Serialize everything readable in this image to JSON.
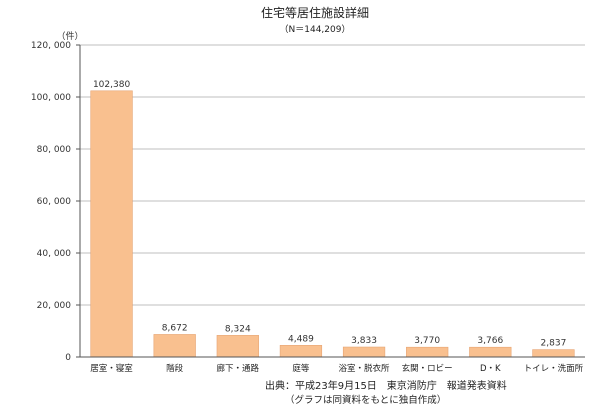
{
  "chart_data": {
    "type": "bar",
    "title": "住宅等居住施設詳細",
    "subtitle": "（N＝144,209）",
    "y_unit": "（件）",
    "categories": [
      "居室・寝室",
      "階段",
      "廊下・通路",
      "庭等",
      "浴室・脱衣所",
      "玄関・ロビー",
      "D・K",
      "トイレ・洗面所"
    ],
    "values": [
      102380,
      8672,
      8324,
      4489,
      3833,
      3770,
      3766,
      2837
    ],
    "value_labels": [
      "102,380",
      "8,672",
      "8,324",
      "4,489",
      "3,833",
      "3,770",
      "3,766",
      "2,837"
    ],
    "ylim": [
      0,
      120000
    ],
    "yticks": [
      0,
      20000,
      40000,
      60000,
      80000,
      100000,
      120000
    ],
    "ytick_labels": [
      "0",
      "20, 000",
      "40, 000",
      "60, 000",
      "80, 000",
      "100, 000",
      "120, 000"
    ],
    "grid": true,
    "bar_color": "#f9c08f",
    "bar_edge_color": "#e6a473"
  },
  "source": "出典：平成23年9月15日　東京消防庁　報道発表資料",
  "note": "（グラフは同資料をもとに独自作成）"
}
